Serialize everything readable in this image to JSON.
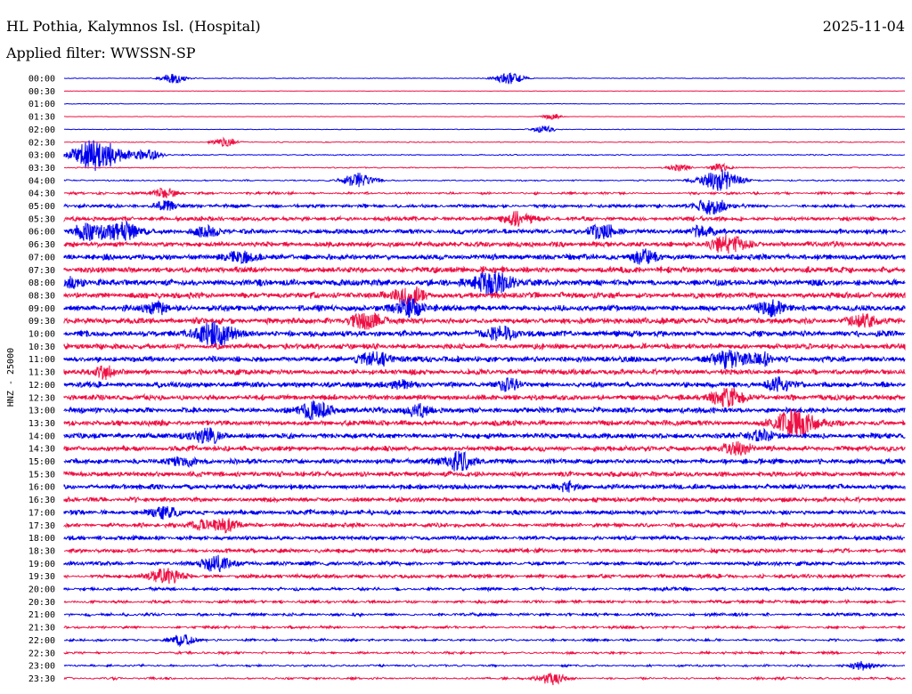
{
  "header": {
    "station": "HL Pothia, Kalymnos Isl. (Hospital)",
    "date": "2025-11-04",
    "filter": "Applied filter: WWSSN-SP"
  },
  "chart_data": {
    "type": "line",
    "title": "HL Pothia, Kalymnos Isl. (Hospital)",
    "ylabel": "HNZ - 25000",
    "rows": [
      "00:00",
      "00:30",
      "01:00",
      "01:30",
      "02:00",
      "02:30",
      "03:00",
      "03:30",
      "04:00",
      "04:30",
      "05:00",
      "05:30",
      "06:00",
      "06:30",
      "07:00",
      "07:30",
      "08:00",
      "08:30",
      "09:00",
      "09:30",
      "10:00",
      "10:30",
      "11:00",
      "11:30",
      "12:00",
      "12:30",
      "13:00",
      "13:30",
      "14:00",
      "14:30",
      "15:00",
      "15:30",
      "16:00",
      "16:30",
      "17:00",
      "17:30",
      "18:00",
      "18:30",
      "19:00",
      "19:30",
      "20:00",
      "20:30",
      "21:00",
      "21:30",
      "22:00",
      "22:30",
      "23:00",
      "23:30"
    ],
    "series_colors": [
      "#0000ee",
      "#ee1144"
    ],
    "noise_level": [
      0.3,
      0.2,
      0.3,
      0.2,
      0.3,
      0.4,
      0.5,
      0.5,
      0.7,
      1.0,
      1.4,
      1.8,
      2.0,
      2.2,
      2.4,
      2.5,
      2.6,
      2.6,
      2.6,
      2.6,
      2.5,
      2.4,
      2.4,
      2.3,
      2.3,
      2.3,
      2.3,
      2.3,
      2.3,
      2.2,
      2.2,
      2.2,
      2.2,
      2.0,
      2.0,
      1.9,
      1.8,
      1.7,
      1.7,
      1.6,
      1.4,
      1.3,
      1.2,
      1.1,
      1.0,
      1.0,
      0.9,
      0.9
    ],
    "events": [
      {
        "row": 0,
        "t": 0.13,
        "a": 6
      },
      {
        "row": 0,
        "t": 0.53,
        "a": 7
      },
      {
        "row": 3,
        "t": 0.58,
        "a": 3
      },
      {
        "row": 4,
        "t": 0.57,
        "a": 4
      },
      {
        "row": 5,
        "t": 0.19,
        "a": 5
      },
      {
        "row": 6,
        "t": 0.04,
        "a": 18
      },
      {
        "row": 6,
        "t": 0.1,
        "a": 6
      },
      {
        "row": 7,
        "t": 0.73,
        "a": 4
      },
      {
        "row": 7,
        "t": 0.78,
        "a": 4
      },
      {
        "row": 8,
        "t": 0.35,
        "a": 8
      },
      {
        "row": 8,
        "t": 0.78,
        "a": 12
      },
      {
        "row": 9,
        "t": 0.12,
        "a": 6
      },
      {
        "row": 10,
        "t": 0.12,
        "a": 5
      },
      {
        "row": 10,
        "t": 0.77,
        "a": 9
      },
      {
        "row": 11,
        "t": 0.54,
        "a": 8
      },
      {
        "row": 12,
        "t": 0.03,
        "a": 9
      },
      {
        "row": 12,
        "t": 0.07,
        "a": 10
      },
      {
        "row": 12,
        "t": 0.17,
        "a": 6
      },
      {
        "row": 12,
        "t": 0.64,
        "a": 8
      },
      {
        "row": 12,
        "t": 0.76,
        "a": 6
      },
      {
        "row": 13,
        "t": 0.79,
        "a": 10
      },
      {
        "row": 14,
        "t": 0.21,
        "a": 6
      },
      {
        "row": 14,
        "t": 0.69,
        "a": 7
      },
      {
        "row": 16,
        "t": 0.51,
        "a": 13
      },
      {
        "row": 16,
        "t": 0.01,
        "a": 5
      },
      {
        "row": 17,
        "t": 0.41,
        "a": 9
      },
      {
        "row": 18,
        "t": 0.41,
        "a": 10
      },
      {
        "row": 18,
        "t": 0.11,
        "a": 6
      },
      {
        "row": 18,
        "t": 0.84,
        "a": 7
      },
      {
        "row": 19,
        "t": 0.36,
        "a": 9
      },
      {
        "row": 19,
        "t": 0.95,
        "a": 6
      },
      {
        "row": 20,
        "t": 0.18,
        "a": 13
      },
      {
        "row": 20,
        "t": 0.52,
        "a": 8
      },
      {
        "row": 22,
        "t": 0.37,
        "a": 8
      },
      {
        "row": 22,
        "t": 0.79,
        "a": 9
      },
      {
        "row": 22,
        "t": 0.83,
        "a": 6
      },
      {
        "row": 23,
        "t": 0.05,
        "a": 6
      },
      {
        "row": 24,
        "t": 0.4,
        "a": 5
      },
      {
        "row": 24,
        "t": 0.53,
        "a": 6
      },
      {
        "row": 24,
        "t": 0.85,
        "a": 7
      },
      {
        "row": 25,
        "t": 0.79,
        "a": 10
      },
      {
        "row": 26,
        "t": 0.3,
        "a": 10
      },
      {
        "row": 26,
        "t": 0.42,
        "a": 6
      },
      {
        "row": 27,
        "t": 0.87,
        "a": 14
      },
      {
        "row": 28,
        "t": 0.17,
        "a": 8
      },
      {
        "row": 28,
        "t": 0.83,
        "a": 6
      },
      {
        "row": 29,
        "t": 0.8,
        "a": 7
      },
      {
        "row": 30,
        "t": 0.47,
        "a": 10
      },
      {
        "row": 30,
        "t": 0.14,
        "a": 5
      },
      {
        "row": 32,
        "t": 0.6,
        "a": 5
      },
      {
        "row": 34,
        "t": 0.12,
        "a": 6
      },
      {
        "row": 35,
        "t": 0.19,
        "a": 7
      },
      {
        "row": 35,
        "t": 0.16,
        "a": 5
      },
      {
        "row": 38,
        "t": 0.18,
        "a": 9
      },
      {
        "row": 39,
        "t": 0.12,
        "a": 9
      },
      {
        "row": 44,
        "t": 0.14,
        "a": 6
      },
      {
        "row": 46,
        "t": 0.95,
        "a": 5
      },
      {
        "row": 47,
        "t": 0.58,
        "a": 7
      }
    ]
  }
}
